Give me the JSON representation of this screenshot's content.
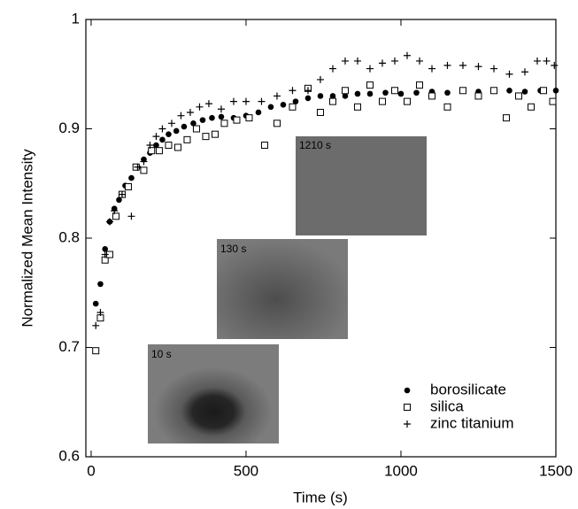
{
  "chart_data": {
    "type": "scatter",
    "x_label": "Time (s)",
    "y_label": "Normalized Mean Intensity",
    "annotations": [
      "1210 s",
      "130 s",
      "10 s"
    ],
    "xlim": [
      -17,
      1500
    ],
    "xticks": [
      0,
      500,
      1000,
      1500
    ],
    "ylim": [
      0.6,
      1
    ],
    "yticks": [
      0.6,
      0.7,
      0.8,
      0.9,
      1
    ],
    "legend": "lower right",
    "series": [
      {
        "name": "borosilicate",
        "color": "#000000",
        "marker": "circle",
        "x": [
          15,
          30,
          45,
          60,
          75,
          90,
          110,
          130,
          150,
          170,
          190,
          210,
          230,
          250,
          275,
          300,
          330,
          360,
          390,
          420,
          460,
          500,
          540,
          580,
          620,
          660,
          700,
          740,
          780,
          820,
          860,
          900,
          950,
          1000,
          1050,
          1100,
          1150,
          1200,
          1250,
          1300,
          1350,
          1400,
          1450,
          1500
        ],
        "values": [
          0.74,
          0.758,
          0.79,
          0.815,
          0.827,
          0.835,
          0.848,
          0.855,
          0.865,
          0.872,
          0.878,
          0.885,
          0.89,
          0.895,
          0.898,
          0.902,
          0.905,
          0.908,
          0.91,
          0.911,
          0.91,
          0.912,
          0.915,
          0.92,
          0.922,
          0.925,
          0.928,
          0.93,
          0.93,
          0.93,
          0.932,
          0.932,
          0.933,
          0.932,
          0.933,
          0.934,
          0.933,
          0.935,
          0.934,
          0.935,
          0.935,
          0.934,
          0.935,
          0.935
        ]
      },
      {
        "name": "silica",
        "color": "#000000",
        "marker": "square",
        "x": [
          15,
          30,
          45,
          60,
          80,
          100,
          120,
          145,
          170,
          195,
          220,
          250,
          280,
          310,
          340,
          370,
          400,
          430,
          470,
          510,
          560,
          600,
          650,
          700,
          740,
          780,
          820,
          860,
          900,
          940,
          980,
          1020,
          1060,
          1100,
          1150,
          1200,
          1250,
          1300,
          1340,
          1380,
          1420,
          1460,
          1490
        ],
        "values": [
          0.697,
          0.727,
          0.78,
          0.785,
          0.82,
          0.84,
          0.847,
          0.865,
          0.862,
          0.88,
          0.88,
          0.885,
          0.883,
          0.89,
          0.9,
          0.893,
          0.895,
          0.905,
          0.908,
          0.91,
          0.885,
          0.905,
          0.92,
          0.937,
          0.915,
          0.925,
          0.935,
          0.92,
          0.94,
          0.925,
          0.935,
          0.925,
          0.94,
          0.93,
          0.92,
          0.935,
          0.93,
          0.935,
          0.91,
          0.93,
          0.92,
          0.935,
          0.925
        ]
      },
      {
        "name": "zinc titanium",
        "color": "#000000",
        "marker": "plus",
        "x": [
          15,
          30,
          45,
          60,
          75,
          100,
          130,
          150,
          170,
          190,
          210,
          230,
          260,
          290,
          320,
          350,
          380,
          420,
          460,
          500,
          550,
          600,
          650,
          700,
          740,
          780,
          820,
          860,
          900,
          940,
          980,
          1020,
          1060,
          1100,
          1150,
          1200,
          1250,
          1300,
          1350,
          1400,
          1440,
          1470,
          1495
        ],
        "values": [
          0.72,
          0.732,
          0.785,
          0.815,
          0.825,
          0.84,
          0.82,
          0.865,
          0.87,
          0.885,
          0.893,
          0.9,
          0.905,
          0.912,
          0.915,
          0.92,
          0.923,
          0.918,
          0.925,
          0.925,
          0.925,
          0.93,
          0.935,
          0.935,
          0.945,
          0.955,
          0.962,
          0.962,
          0.955,
          0.96,
          0.962,
          0.967,
          0.962,
          0.955,
          0.958,
          0.958,
          0.957,
          0.955,
          0.95,
          0.952,
          0.962,
          0.962,
          0.958
        ]
      }
    ]
  }
}
